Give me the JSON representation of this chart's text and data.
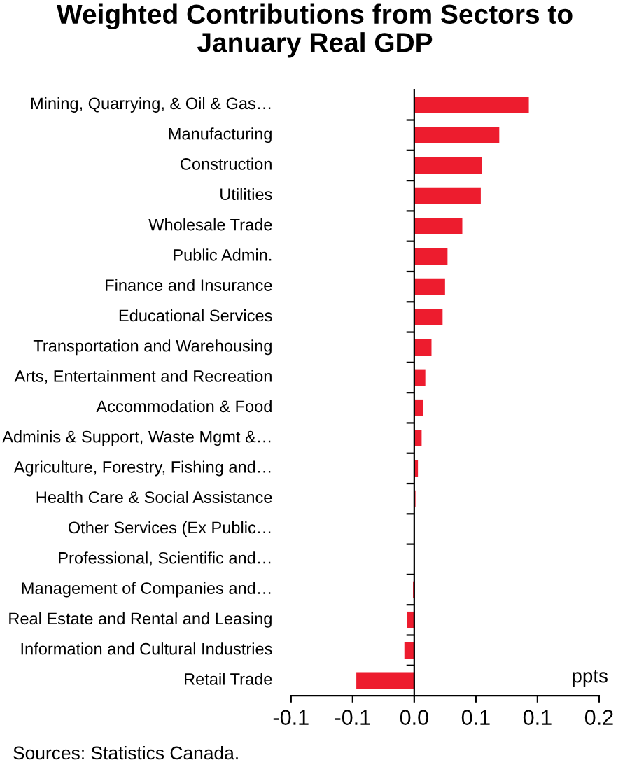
{
  "chart_data": {
    "type": "bar",
    "orientation": "horizontal",
    "title": "Weighted Contributions from Sectors to\nJanuary Real GDP",
    "xlabel": "ppts",
    "categories": [
      "Mining, Quarrying, & Oil & Gas…",
      "Manufacturing",
      "Construction",
      "Utilities",
      "Wholesale Trade",
      "Public Admin.",
      "Finance and Insurance",
      "Educational Services",
      "Transportation and Warehousing",
      "Arts, Entertainment and Recreation",
      "Accommodation & Food",
      "Adminis & Support, Waste Mgmt &…",
      "Agriculture, Forestry, Fishing and…",
      "Health Care & Social Assistance",
      "Other Services (Ex Public…",
      "Professional, Scientific and…",
      "Management of Companies and…",
      "Real Estate and Rental and Leasing",
      "Information and Cultural Industries",
      "Retail Trade"
    ],
    "values": [
      0.093,
      0.069,
      0.055,
      0.054,
      0.039,
      0.027,
      0.025,
      0.023,
      0.014,
      0.009,
      0.007,
      0.006,
      0.003,
      0.001,
      0,
      0,
      -0.001,
      -0.006,
      -0.008,
      -0.047
    ],
    "color": "#ed1c2e",
    "xlim": [
      -0.1,
      0.15
    ],
    "xticks": [
      {
        "value": -0.1,
        "label": "-0.1"
      },
      {
        "value": -0.05,
        "label": "-0.1"
      },
      {
        "value": 0,
        "label": "0.0"
      },
      {
        "value": 0.05,
        "label": "0.1"
      },
      {
        "value": 0.1,
        "label": "0.1"
      },
      {
        "value": 0.15,
        "label": "0.2"
      }
    ],
    "legend": false,
    "annotations": [
      "Sources: Statistics Canada."
    ]
  }
}
